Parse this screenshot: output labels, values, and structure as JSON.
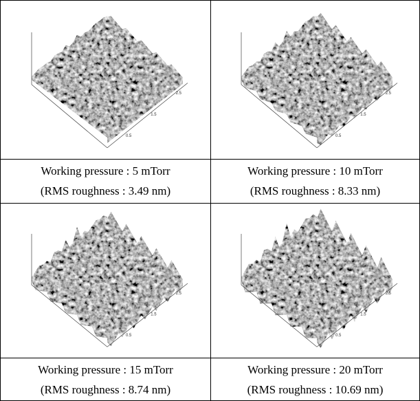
{
  "panels": [
    {
      "caption_line1": "Working pressure : 5 mTorr",
      "caption_line2": "(RMS roughness : 3.49 nm)",
      "axis_ticks": [
        "0.5",
        "1.5",
        "2.5"
      ]
    },
    {
      "caption_line1": "Working pressure : 10 mTorr",
      "caption_line2": "(RMS roughness : 8.33 nm)",
      "axis_ticks": [
        "0.5",
        "1.5",
        "2.5"
      ]
    },
    {
      "caption_line1": "Working pressure : 15 mTorr",
      "caption_line2": "(RMS roughness : 8.74 nm)",
      "axis_ticks": [
        "0.5",
        "1.5",
        "2.5"
      ]
    },
    {
      "caption_line1": "Working pressure : 20 mTorr",
      "caption_line2": "(RMS roughness : 10.69 nm)",
      "axis_ticks": [
        "0.5",
        "1.5",
        "2.5"
      ]
    }
  ]
}
